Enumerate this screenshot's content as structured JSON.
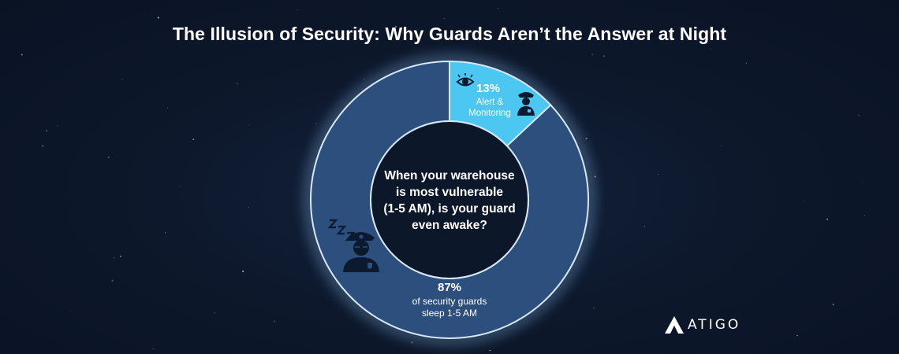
{
  "title": "The Illusion of Security: Why Guards Aren’t the Answer at Night",
  "center_question": [
    "When your warehouse",
    "is most vulnerable",
    "(1-5 AM), is your guard",
    "even awake?"
  ],
  "colors": {
    "background": "#0c1628",
    "sleep_slice": "#2d4f7d",
    "alert_slice": "#4cc7f2",
    "ring_stroke": "#d6e8f6",
    "text": "#ffffff"
  },
  "icons": {
    "alert": [
      "eye-icon",
      "alert-guard-icon"
    ],
    "sleep": [
      "sleeping-guard-icon",
      "zzz-icon"
    ]
  },
  "chart_data": {
    "type": "pie",
    "title": "The Illusion of Security: Why Guards Aren’t the Answer at Night",
    "slices": [
      {
        "label": "Alert & Monitoring",
        "value": 13,
        "display": "13%",
        "label_lines": [
          "Alert &",
          "Monitoring"
        ]
      },
      {
        "label": "of security guards sleep 1-5 AM",
        "value": 87,
        "display": "87%",
        "label_lines": [
          "of security guards",
          "sleep 1-5 AM"
        ]
      }
    ],
    "donut": true
  },
  "logo": {
    "text": "ATIGO"
  }
}
